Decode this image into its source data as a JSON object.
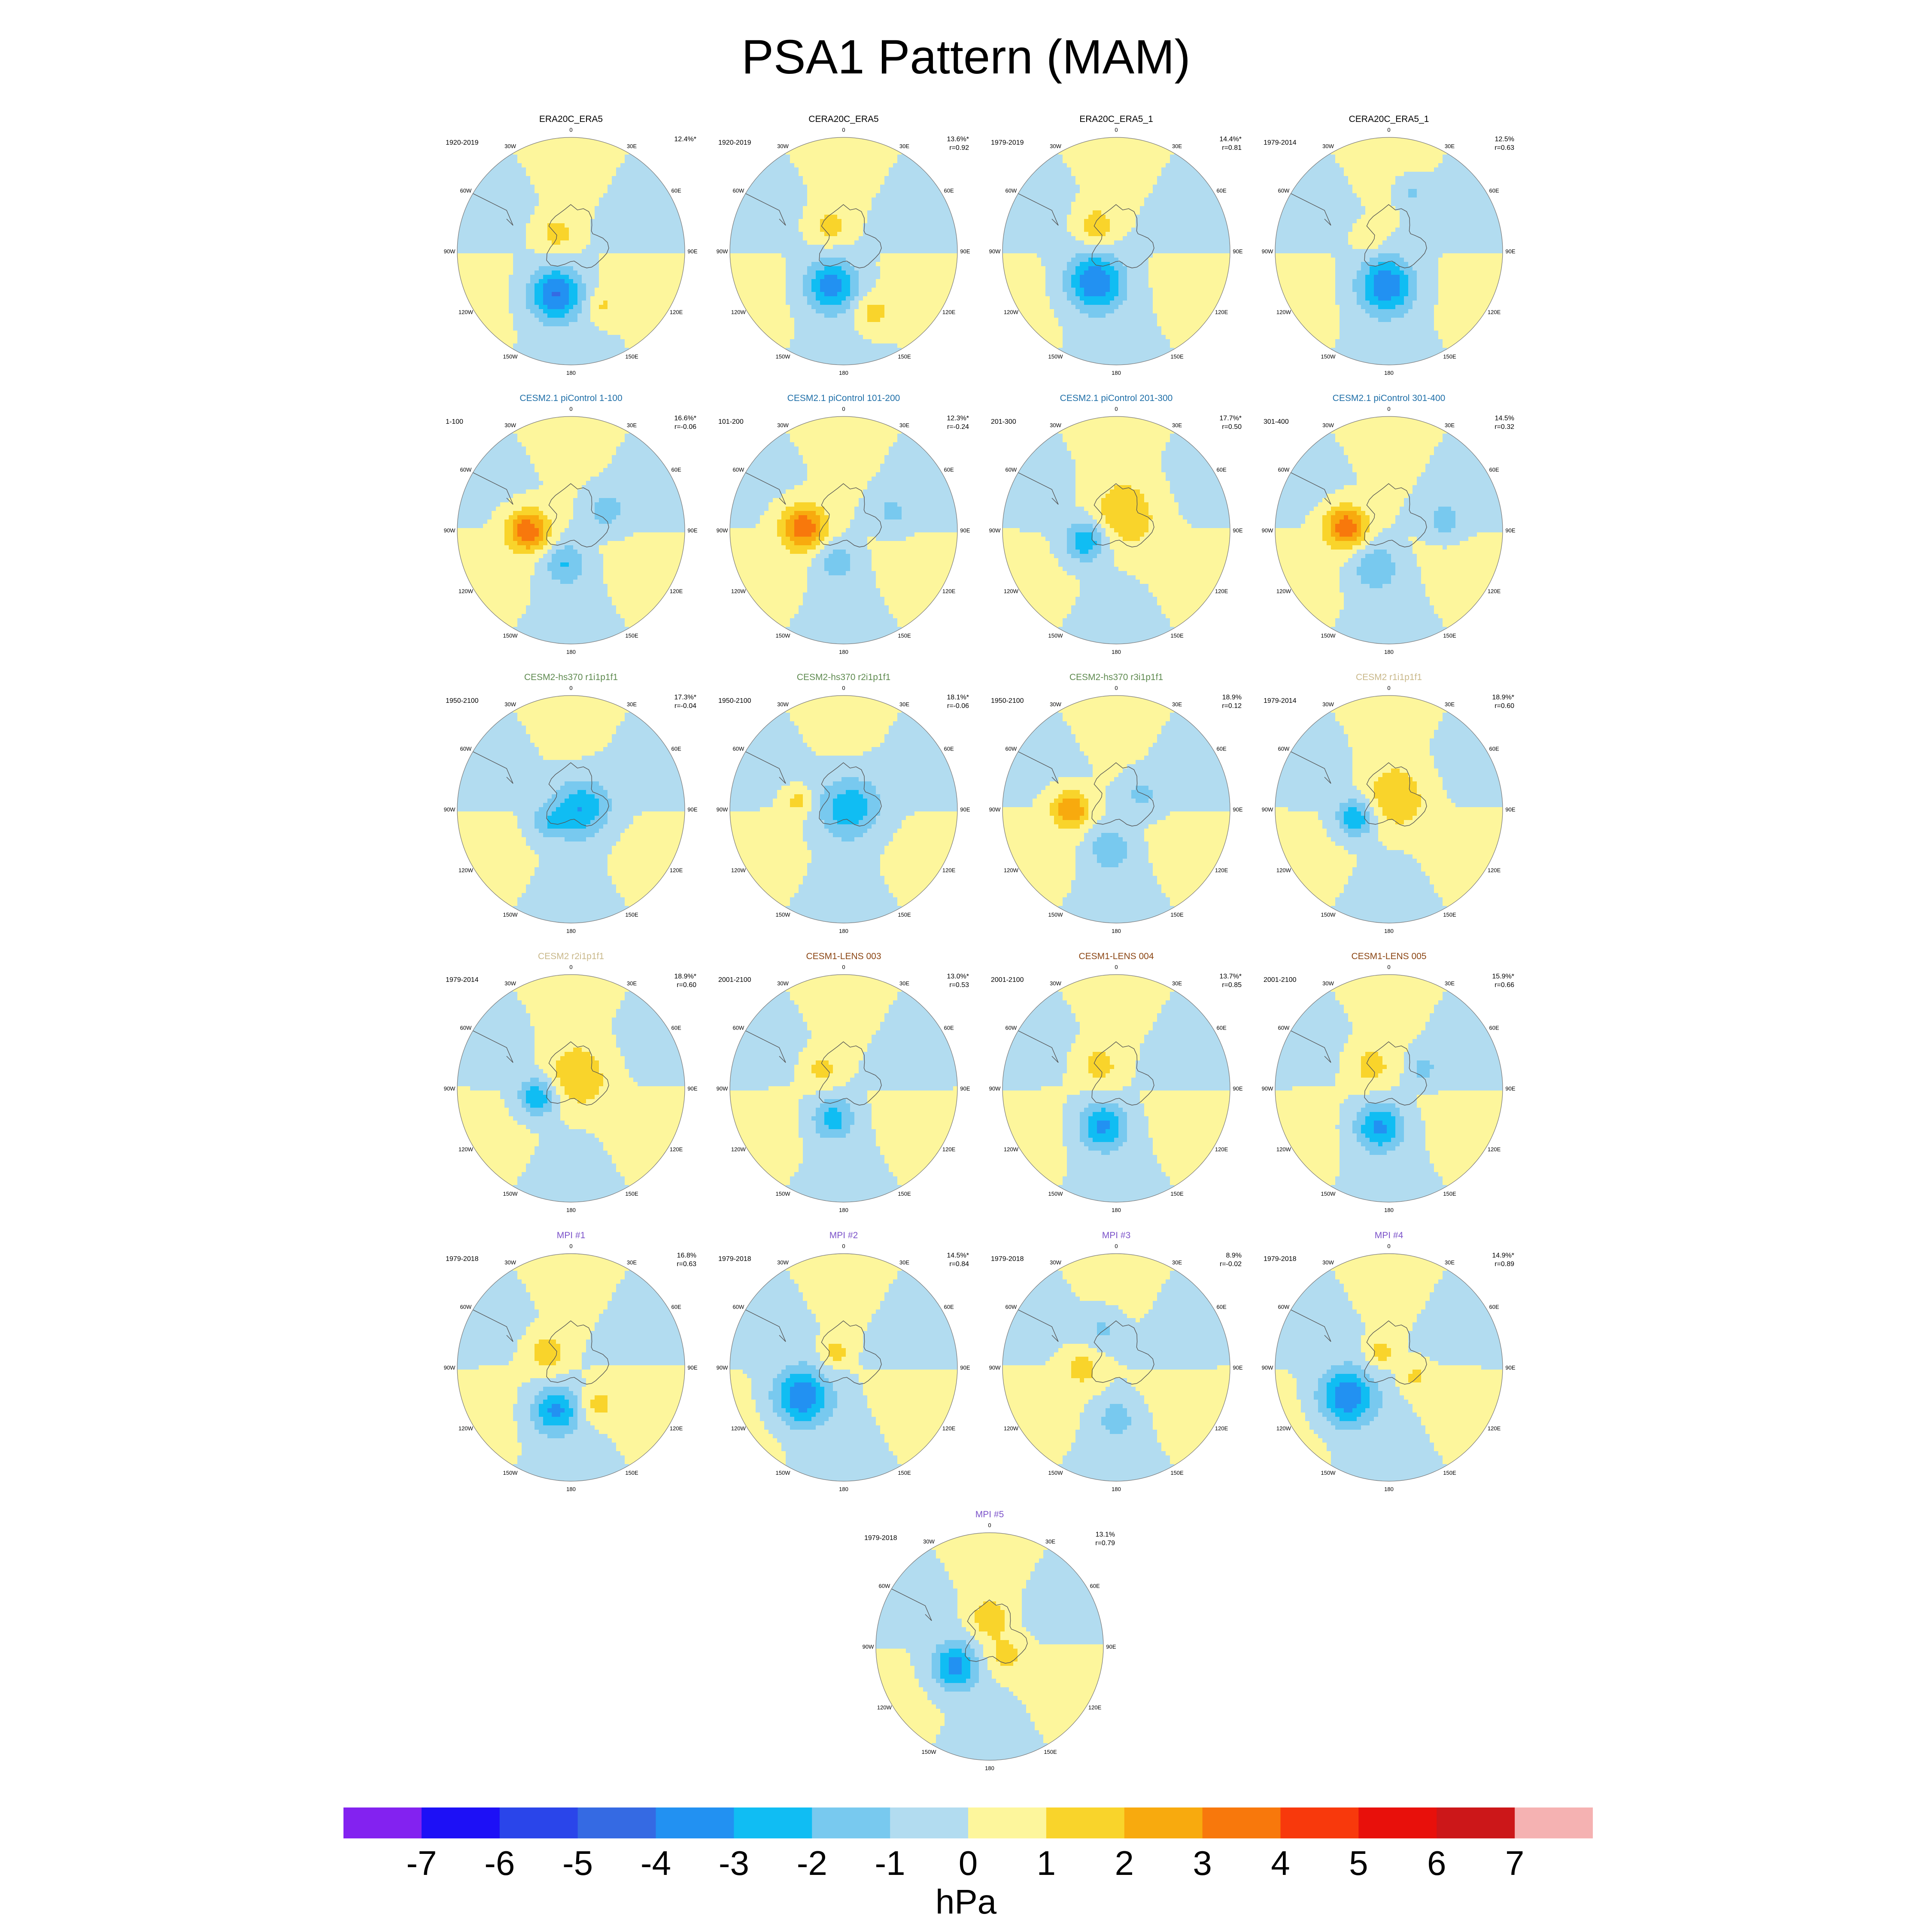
{
  "title": "PSA1 Pattern (MAM)",
  "colorbar": {
    "units": "hPa",
    "ticks": [
      "-7",
      "-6",
      "-5",
      "-4",
      "-3",
      "-2",
      "-1",
      "0",
      "1",
      "2",
      "3",
      "4",
      "5",
      "6",
      "7"
    ],
    "colors": [
      "#8322f0",
      "#1d10f6",
      "#2a45ea",
      "#356ae3",
      "#2291f2",
      "#10bdf3",
      "#78c9ef",
      "#b2dcf0",
      "#fdf69c",
      "#f9d42b",
      "#f8aa0e",
      "#f8780c",
      "#f8390c",
      "#e8100b",
      "#cc1719",
      "#f5b2b2"
    ]
  },
  "lon_labels": [
    "0",
    "30E",
    "60E",
    "90E",
    "120E",
    "150E",
    "180",
    "150W",
    "120W",
    "90W",
    "60W",
    "30W"
  ],
  "chart_data": {
    "type": "heatmap",
    "title": "PSA1 Pattern (MAM)",
    "units": "hPa",
    "range": [
      -7,
      7
    ],
    "projection": "south-polar-stereographic",
    "panels": [
      {
        "title": "ERA20C_ERA5",
        "title_color": "#000000",
        "period": "1920-2019",
        "pct": "12.4%*",
        "r": "",
        "anomalies": [
          {
            "lon": 200,
            "r": 0.4,
            "amp": -4.0,
            "size": 0.28
          },
          {
            "lon": 320,
            "r": 0.2,
            "amp": 1.5,
            "size": 0.2
          },
          {
            "lon": 150,
            "r": 0.55,
            "amp": 1.2,
            "size": 0.18
          }
        ]
      },
      {
        "title": "CERA20C_ERA5",
        "title_color": "#000000",
        "period": "1920-2019",
        "pct": "13.6%*",
        "r": "r=0.92",
        "anomalies": [
          {
            "lon": 200,
            "r": 0.32,
            "amp": -3.5,
            "size": 0.28
          },
          {
            "lon": 330,
            "r": 0.25,
            "amp": 1.5,
            "size": 0.2
          },
          {
            "lon": 155,
            "r": 0.6,
            "amp": 1.5,
            "size": 0.2
          }
        ]
      },
      {
        "title": "ERA20C_ERA5_1",
        "title_color": "#000000",
        "period": "1979-2019",
        "pct": "14.4%*",
        "r": "r=0.81",
        "anomalies": [
          {
            "lon": 215,
            "r": 0.33,
            "amp": -4.0,
            "size": 0.3
          },
          {
            "lon": 320,
            "r": 0.28,
            "amp": 1.8,
            "size": 0.2
          }
        ]
      },
      {
        "title": "CERA20C_ERA5_1",
        "title_color": "#000000",
        "period": "1979-2014",
        "pct": "12.5%",
        "r": "r=0.63",
        "anomalies": [
          {
            "lon": 185,
            "r": 0.3,
            "amp": -3.8,
            "size": 0.3
          },
          {
            "lon": 20,
            "r": 0.55,
            "amp": -1.2,
            "size": 0.15
          },
          {
            "lon": 300,
            "r": 0.2,
            "amp": 1.0,
            "size": 0.15
          }
        ]
      },
      {
        "title": "CESM2.1 piControl 1-100",
        "title_color": "#1f6fa8",
        "period": "1-100",
        "pct": "16.6%*",
        "r": "r=-0.06",
        "anomalies": [
          {
            "lon": 270,
            "r": 0.38,
            "amp": 3.8,
            "size": 0.22
          },
          {
            "lon": 190,
            "r": 0.3,
            "amp": -2.0,
            "size": 0.22
          },
          {
            "lon": 60,
            "r": 0.35,
            "amp": -1.5,
            "size": 0.2
          }
        ]
      },
      {
        "title": "CESM2.1 piControl 101-200",
        "title_color": "#1f6fa8",
        "period": "101-200",
        "pct": "12.3%*",
        "r": "r=-0.24",
        "anomalies": [
          {
            "lon": 275,
            "r": 0.35,
            "amp": 3.8,
            "size": 0.24
          },
          {
            "lon": 195,
            "r": 0.28,
            "amp": -1.5,
            "size": 0.22
          },
          {
            "lon": 70,
            "r": 0.45,
            "amp": -1.2,
            "size": 0.18
          }
        ]
      },
      {
        "title": "CESM2.1 piControl 201-300",
        "title_color": "#1f6fa8",
        "period": "201-300",
        "pct": "17.7%*",
        "r": "r=0.50",
        "anomalies": [
          {
            "lon": 250,
            "r": 0.28,
            "amp": -3.0,
            "size": 0.22
          },
          {
            "lon": 30,
            "r": 0.15,
            "amp": 2.0,
            "size": 0.35
          }
        ]
      },
      {
        "title": "CESM2.1 piControl 301-400",
        "title_color": "#1f6fa8",
        "period": "301-400",
        "pct": "14.5%",
        "r": "r=0.32",
        "anomalies": [
          {
            "lon": 275,
            "r": 0.38,
            "amp": 3.8,
            "size": 0.22
          },
          {
            "lon": 200,
            "r": 0.35,
            "amp": -1.8,
            "size": 0.25
          },
          {
            "lon": 80,
            "r": 0.5,
            "amp": -1.5,
            "size": 0.18
          }
        ]
      },
      {
        "title": "CESM2-hs370 r1i1p1f1",
        "title_color": "#5e8a4f",
        "period": "1950-2100",
        "pct": "17.3%*",
        "r": "r=-0.04",
        "anomalies": [
          {
            "lon": 90,
            "r": 0.08,
            "amp": -3.0,
            "size": 0.3
          },
          {
            "lon": 240,
            "r": 0.25,
            "amp": -1.5,
            "size": 0.18
          }
        ]
      },
      {
        "title": "CESM2-hs370 r2i1p1f1",
        "title_color": "#5e8a4f",
        "period": "1950-2100",
        "pct": "18.1%*",
        "r": "r=-0.06",
        "anomalies": [
          {
            "lon": 80,
            "r": 0.05,
            "amp": -2.8,
            "size": 0.32
          },
          {
            "lon": 280,
            "r": 0.4,
            "amp": 1.5,
            "size": 0.15
          }
        ]
      },
      {
        "title": "CESM2-hs370 r3i1p1f1",
        "title_color": "#5e8a4f",
        "period": "1950-2100",
        "pct": "18.9%",
        "r": "r=0.12",
        "anomalies": [
          {
            "lon": 270,
            "r": 0.4,
            "amp": 3.0,
            "size": 0.2
          },
          {
            "lon": 190,
            "r": 0.35,
            "amp": -1.8,
            "size": 0.22
          },
          {
            "lon": 60,
            "r": 0.25,
            "amp": -1.2,
            "size": 0.2
          }
        ]
      },
      {
        "title": "CESM2 r1i1p1f1",
        "title_color": "#c9b88a",
        "period": "1979-2014",
        "pct": "18.9%*",
        "r": "r=0.60",
        "anomalies": [
          {
            "lon": 255,
            "r": 0.3,
            "amp": -3.0,
            "size": 0.2
          },
          {
            "lon": 30,
            "r": 0.12,
            "amp": 2.0,
            "size": 0.32
          }
        ]
      },
      {
        "title": "CESM2 r2i1p1f1",
        "title_color": "#c9b88a",
        "period": "1979-2014",
        "pct": "18.9%*",
        "r": "r=0.60",
        "anomalies": [
          {
            "lon": 255,
            "r": 0.3,
            "amp": -3.0,
            "size": 0.2
          },
          {
            "lon": 30,
            "r": 0.12,
            "amp": 2.0,
            "size": 0.32
          }
        ]
      },
      {
        "title": "CESM1-LENS 003",
        "title_color": "#8b4513",
        "period": "2001-2100",
        "pct": "13.0%*",
        "r": "r=0.53",
        "anomalies": [
          {
            "lon": 200,
            "r": 0.28,
            "amp": -2.5,
            "size": 0.22
          },
          {
            "lon": 310,
            "r": 0.25,
            "amp": 1.5,
            "size": 0.18
          }
        ]
      },
      {
        "title": "CESM1-LENS 004",
        "title_color": "#8b4513",
        "period": "2001-2100",
        "pct": "13.7%*",
        "r": "r=0.85",
        "anomalies": [
          {
            "lon": 200,
            "r": 0.35,
            "amp": -3.2,
            "size": 0.25
          },
          {
            "lon": 320,
            "r": 0.25,
            "amp": 1.5,
            "size": 0.22
          }
        ]
      },
      {
        "title": "CESM1-LENS 005",
        "title_color": "#8b4513",
        "period": "2001-2100",
        "pct": "15.9%*",
        "r": "r=0.66",
        "anomalies": [
          {
            "lon": 195,
            "r": 0.35,
            "amp": -3.2,
            "size": 0.25
          },
          {
            "lon": 320,
            "r": 0.25,
            "amp": 1.5,
            "size": 0.22
          },
          {
            "lon": 60,
            "r": 0.35,
            "amp": -1.3,
            "size": 0.15
          }
        ]
      },
      {
        "title": "MPI #1",
        "title_color": "#7b52c9",
        "period": "1979-2018",
        "pct": "16.8%",
        "r": "r=0.63",
        "anomalies": [
          {
            "lon": 200,
            "r": 0.4,
            "amp": -3.2,
            "size": 0.25
          },
          {
            "lon": 300,
            "r": 0.25,
            "amp": 1.8,
            "size": 0.2
          },
          {
            "lon": 145,
            "r": 0.4,
            "amp": 1.5,
            "size": 0.18
          }
        ]
      },
      {
        "title": "MPI #2",
        "title_color": "#7b52c9",
        "period": "1979-2018",
        "pct": "14.5%*",
        "r": "r=0.84",
        "anomalies": [
          {
            "lon": 235,
            "r": 0.45,
            "amp": -4.0,
            "size": 0.3
          },
          {
            "lon": 330,
            "r": 0.15,
            "amp": 1.5,
            "size": 0.15
          }
        ]
      },
      {
        "title": "MPI #3",
        "title_color": "#7b52c9",
        "period": "1979-2018",
        "pct": "8.9%",
        "r": "r=-0.02",
        "anomalies": [
          {
            "lon": 270,
            "r": 0.3,
            "amp": 1.5,
            "size": 0.2
          },
          {
            "lon": 180,
            "r": 0.45,
            "amp": -1.5,
            "size": 0.2
          },
          {
            "lon": 340,
            "r": 0.35,
            "amp": -1.2,
            "size": 0.2
          }
        ]
      },
      {
        "title": "MPI #4",
        "title_color": "#7b52c9",
        "period": "1979-2018",
        "pct": "14.9%*",
        "r": "r=0.89",
        "anomalies": [
          {
            "lon": 235,
            "r": 0.45,
            "amp": -4.0,
            "size": 0.3
          },
          {
            "lon": 330,
            "r": 0.15,
            "amp": 1.5,
            "size": 0.15
          },
          {
            "lon": 110,
            "r": 0.25,
            "amp": 1.2,
            "size": 0.15
          }
        ]
      },
      {
        "title": "MPI #5",
        "title_color": "#7b52c9",
        "period": "1979-2018",
        "pct": "13.1%",
        "r": "r=0.79",
        "anomalies": [
          {
            "lon": 240,
            "r": 0.35,
            "amp": -3.5,
            "size": 0.25
          },
          {
            "lon": 0,
            "r": 0.25,
            "amp": 1.8,
            "size": 0.2
          },
          {
            "lon": 120,
            "r": 0.15,
            "amp": 1.5,
            "size": 0.2
          }
        ]
      }
    ]
  }
}
